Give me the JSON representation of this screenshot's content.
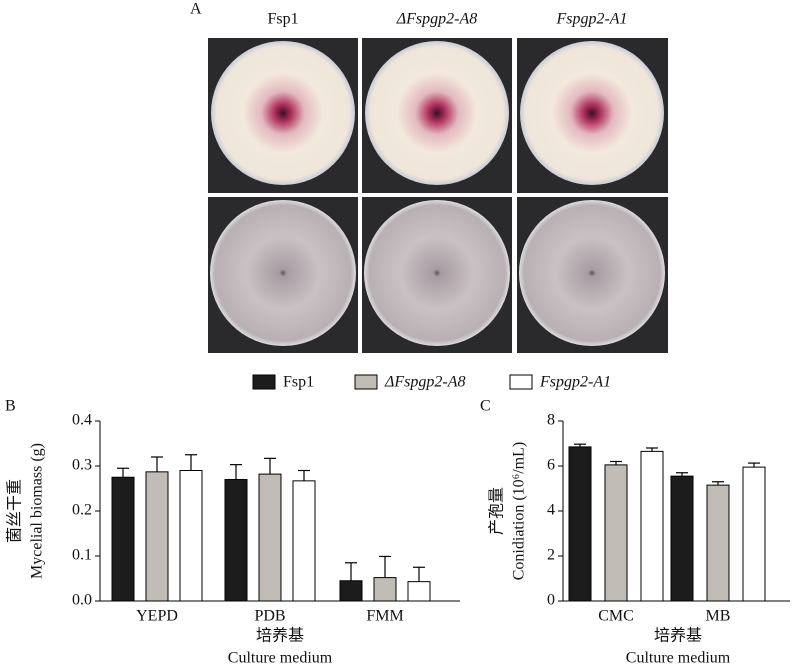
{
  "panel_a": {
    "label": "A",
    "columns": [
      "Fsp1",
      "ΔFspgp2-A8",
      "Fspgp2-A1"
    ]
  },
  "chart_data": [
    {
      "type": "bar",
      "panel_label": "B",
      "x_label": [
        "培养基",
        "Culture medium"
      ],
      "y_label": [
        "菌丝干重",
        "Mycelial biomass (g)"
      ],
      "categories": [
        "YEPD",
        "PDB",
        "FMM"
      ],
      "ylim": [
        0,
        0.4
      ],
      "yticks": [
        {
          "value": 0,
          "label": "0.0"
        },
        0.1,
        0.2,
        0.3,
        0.4
      ],
      "series": [
        {
          "name": "Fsp1",
          "color": "#1c1c1c",
          "values": [
            0.275,
            0.27,
            0.045
          ],
          "errors": [
            0.02,
            0.033,
            0.04
          ]
        },
        {
          "name": "ΔFspgp2-A8",
          "color": "#c2bcb7",
          "values": [
            0.287,
            0.282,
            0.052
          ],
          "errors": [
            0.033,
            0.035,
            0.047
          ]
        },
        {
          "name": "Fspgp2-A1",
          "color": "#ffffff",
          "values": [
            0.29,
            0.267,
            0.043
          ],
          "errors": [
            0.035,
            0.023,
            0.032
          ]
        }
      ]
    },
    {
      "type": "bar",
      "panel_label": "C",
      "x_label": [
        "培养基",
        "Culture medium"
      ],
      "y_label": [
        "产孢量",
        "Conidiation (10⁶/mL)"
      ],
      "categories": [
        "CMC",
        "MB"
      ],
      "ylim": [
        0,
        8
      ],
      "yticks": [
        0,
        2,
        4,
        6,
        8
      ],
      "series": [
        {
          "color": "#1c1c1c",
          "values": [
            6.85,
            5.55
          ],
          "errors": [
            0.12,
            0.15
          ]
        },
        {
          "color": "#c2bcb7",
          "values": [
            6.05,
            5.15
          ],
          "errors": [
            0.15,
            0.15
          ]
        },
        {
          "color": "#ffffff",
          "values": [
            6.65,
            5.95
          ],
          "errors": [
            0.15,
            0.18
          ]
        }
      ]
    }
  ]
}
